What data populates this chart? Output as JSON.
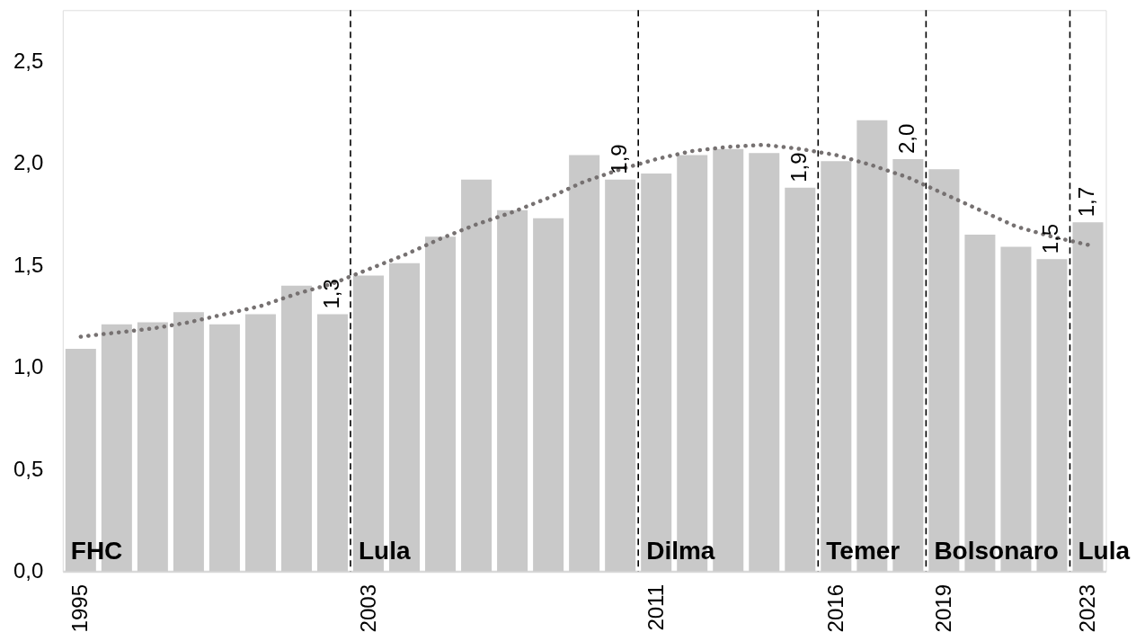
{
  "chart_data": {
    "type": "bar",
    "x": [
      1995,
      1996,
      1997,
      1998,
      1999,
      2000,
      2001,
      2002,
      2003,
      2004,
      2005,
      2006,
      2007,
      2008,
      2009,
      2010,
      2011,
      2012,
      2013,
      2014,
      2015,
      2016,
      2017,
      2018,
      2019,
      2020,
      2021,
      2022,
      2023
    ],
    "series": [
      {
        "color": "#c9c9c9",
        "values": [
          1.09,
          1.21,
          1.22,
          1.27,
          1.21,
          1.26,
          1.4,
          1.26,
          1.45,
          1.51,
          1.64,
          1.92,
          1.77,
          1.73,
          2.04,
          1.92,
          1.95,
          2.04,
          2.07,
          2.05,
          1.88,
          2.01,
          2.21,
          2.02,
          1.97,
          1.65,
          1.59,
          1.53,
          1.71
        ],
        "value_labels": [
          null,
          null,
          null,
          null,
          null,
          null,
          null,
          "1,3",
          null,
          null,
          null,
          null,
          null,
          null,
          null,
          "1,9",
          null,
          null,
          null,
          null,
          "1,9",
          null,
          null,
          "2,0",
          null,
          null,
          null,
          "1,5",
          "1,7"
        ]
      },
      {
        "type": "line",
        "color": "#767171",
        "line_style": "dotted",
        "values": [
          1.15,
          1.17,
          1.19,
          1.22,
          1.26,
          1.3,
          1.36,
          1.41,
          1.48,
          1.55,
          1.63,
          1.7,
          1.76,
          1.83,
          1.91,
          1.97,
          2.02,
          2.06,
          2.08,
          2.09,
          2.07,
          2.04,
          1.99,
          1.93,
          1.85,
          1.77,
          1.69,
          1.64,
          1.6
        ]
      }
    ],
    "xlim": [
      1994.5,
      2023.5
    ],
    "xticks": [
      1995,
      2003,
      2011,
      2016,
      2019,
      2023
    ],
    "ylim": [
      0,
      2.75
    ],
    "yticks": [
      {
        "value": 0,
        "label": "0,0"
      },
      {
        "value": 0.5,
        "label": "0,5"
      },
      {
        "value": 1,
        "label": "1,0"
      },
      {
        "value": 1.5,
        "label": "1,5"
      },
      {
        "value": 2,
        "label": "2,0"
      },
      {
        "value": 2.5,
        "label": "2,5"
      }
    ],
    "grid": false,
    "ref_lines": [
      {
        "axis": "x",
        "value": 2002.5,
        "color": "#000000",
        "line_style": "dashed"
      },
      {
        "axis": "x",
        "value": 2010.5,
        "color": "#000000",
        "line_style": "dashed"
      },
      {
        "axis": "x",
        "value": 2015.5,
        "color": "#000000",
        "line_style": "dashed"
      },
      {
        "axis": "x",
        "value": 2018.5,
        "color": "#000000",
        "line_style": "dashed"
      },
      {
        "axis": "x",
        "value": 2022.5,
        "color": "#000000",
        "line_style": "dashed"
      }
    ],
    "annotations": [
      {
        "text": "FHC",
        "x": 1995,
        "y": 0
      },
      {
        "text": "Lula",
        "x": 2003,
        "y": 0
      },
      {
        "text": "Dilma",
        "x": 2011,
        "y": 0
      },
      {
        "text": "Temer",
        "x": 2016,
        "y": 0
      },
      {
        "text": "Bolsonaro",
        "x": 2019,
        "y": 0
      },
      {
        "text": "Lula",
        "x": 2023,
        "y": 0
      }
    ]
  }
}
